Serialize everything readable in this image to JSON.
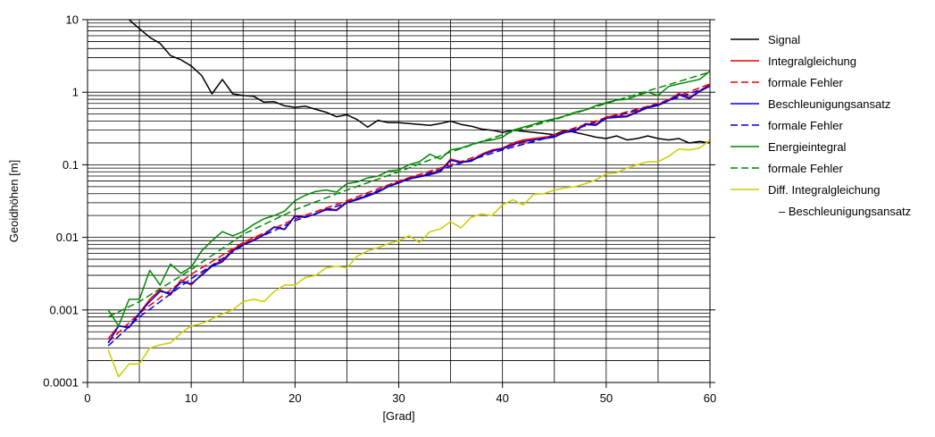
{
  "chart_data": {
    "type": "line",
    "xlabel": "[Grad]",
    "ylabel": "Geoidhöhen [m]",
    "xlim": [
      0,
      60
    ],
    "ylim": [
      0.0001,
      10
    ],
    "yscale": "log",
    "grid": true,
    "legend_placement": "right",
    "x_ticks": [
      "0",
      "10",
      "20",
      "30",
      "40",
      "50",
      "60"
    ],
    "y_ticks": [
      "0.0001",
      "0.001",
      "0.01",
      "0.1",
      "1",
      "10"
    ],
    "series": [
      {
        "name": "Signal",
        "color": "#000000",
        "dash": "solid",
        "x": [
          4,
          5,
          6,
          7,
          8,
          9,
          10,
          11,
          12,
          13,
          14,
          15,
          16,
          17,
          18,
          19,
          20,
          21,
          22,
          23,
          24,
          25,
          26,
          27,
          28,
          29,
          30,
          31,
          32,
          33,
          34,
          35,
          36,
          37,
          38,
          39,
          40,
          41,
          42,
          43,
          44,
          45,
          46,
          47,
          48,
          49,
          50,
          51,
          52,
          53,
          54,
          55,
          56,
          57,
          58,
          59,
          60
        ],
        "y": [
          10,
          7.5,
          5.7,
          4.7,
          3.2,
          2.8,
          2.3,
          1.7,
          0.95,
          1.5,
          0.95,
          0.9,
          0.88,
          0.73,
          0.74,
          0.65,
          0.62,
          0.64,
          0.58,
          0.53,
          0.46,
          0.49,
          0.42,
          0.33,
          0.41,
          0.38,
          0.38,
          0.37,
          0.36,
          0.35,
          0.37,
          0.4,
          0.36,
          0.34,
          0.31,
          0.3,
          0.28,
          0.3,
          0.29,
          0.28,
          0.27,
          0.26,
          0.3,
          0.28,
          0.26,
          0.24,
          0.23,
          0.25,
          0.22,
          0.23,
          0.25,
          0.23,
          0.22,
          0.23,
          0.2,
          0.21,
          0.2
        ]
      },
      {
        "name": "Integralgleichung",
        "color": "#ee0000",
        "dash": "solid",
        "x": [
          2,
          3,
          4,
          5,
          6,
          7,
          8,
          9,
          10,
          11,
          12,
          13,
          14,
          15,
          16,
          17,
          18,
          19,
          20,
          21,
          22,
          23,
          24,
          25,
          26,
          27,
          28,
          29,
          30,
          31,
          32,
          33,
          34,
          35,
          36,
          37,
          38,
          39,
          40,
          41,
          42,
          43,
          44,
          45,
          46,
          47,
          48,
          49,
          50,
          51,
          52,
          53,
          54,
          55,
          56,
          57,
          58,
          59,
          60
        ],
        "y": [
          0.0004,
          0.0006,
          0.00058,
          0.0009,
          0.0014,
          0.0019,
          0.0016,
          0.0026,
          0.0022,
          0.0031,
          0.0041,
          0.0048,
          0.0068,
          0.0082,
          0.0093,
          0.011,
          0.014,
          0.013,
          0.02,
          0.019,
          0.021,
          0.025,
          0.024,
          0.031,
          0.034,
          0.038,
          0.043,
          0.051,
          0.058,
          0.066,
          0.07,
          0.075,
          0.082,
          0.12,
          0.11,
          0.115,
          0.14,
          0.16,
          0.17,
          0.2,
          0.22,
          0.23,
          0.24,
          0.25,
          0.29,
          0.3,
          0.37,
          0.36,
          0.46,
          0.47,
          0.47,
          0.55,
          0.63,
          0.68,
          0.78,
          0.96,
          0.84,
          1.05,
          1.27
        ]
      },
      {
        "name": "formale Fehler",
        "color": "#ee0000",
        "dash": "dashed",
        "x": [
          2,
          5,
          10,
          15,
          20,
          25,
          30,
          35,
          40,
          45,
          50,
          55,
          60
        ],
        "y": [
          0.00036,
          0.0009,
          0.0031,
          0.0085,
          0.018,
          0.032,
          0.06,
          0.1,
          0.17,
          0.26,
          0.45,
          0.7,
          1.3
        ]
      },
      {
        "name": "Beschleunigungsansatz",
        "color": "#0000dd",
        "dash": "solid",
        "x": [
          2,
          3,
          4,
          5,
          6,
          7,
          8,
          9,
          10,
          11,
          12,
          13,
          14,
          15,
          16,
          17,
          18,
          19,
          20,
          21,
          22,
          23,
          24,
          25,
          26,
          27,
          28,
          29,
          30,
          31,
          32,
          33,
          34,
          35,
          36,
          37,
          38,
          39,
          40,
          41,
          42,
          43,
          44,
          45,
          46,
          47,
          48,
          49,
          50,
          51,
          52,
          53,
          54,
          55,
          56,
          57,
          58,
          59,
          60
        ],
        "y": [
          0.00035,
          0.0006,
          0.00057,
          0.0009,
          0.0013,
          0.0018,
          0.0017,
          0.0024,
          0.0023,
          0.003,
          0.004,
          0.0046,
          0.0065,
          0.0079,
          0.009,
          0.0108,
          0.0138,
          0.0128,
          0.0195,
          0.0188,
          0.021,
          0.024,
          0.0235,
          0.03,
          0.033,
          0.037,
          0.042,
          0.05,
          0.056,
          0.064,
          0.068,
          0.073,
          0.08,
          0.115,
          0.108,
          0.112,
          0.135,
          0.155,
          0.165,
          0.19,
          0.21,
          0.22,
          0.23,
          0.24,
          0.28,
          0.29,
          0.36,
          0.35,
          0.44,
          0.45,
          0.46,
          0.53,
          0.61,
          0.66,
          0.76,
          0.92,
          0.82,
          1.02,
          1.22
        ]
      },
      {
        "name": "formale Fehler",
        "color": "#0000dd",
        "dash": "dashed",
        "x": [
          2,
          5,
          10,
          15,
          20,
          25,
          30,
          35,
          40,
          45,
          50,
          55,
          60
        ],
        "y": [
          0.00032,
          0.0008,
          0.0027,
          0.0078,
          0.017,
          0.03,
          0.057,
          0.095,
          0.16,
          0.25,
          0.43,
          0.68,
          1.2
        ]
      },
      {
        "name": "Energieintegral",
        "color": "#008800",
        "dash": "solid",
        "x": [
          2,
          3,
          4,
          5,
          6,
          7,
          8,
          9,
          10,
          11,
          12,
          13,
          14,
          15,
          16,
          17,
          18,
          19,
          20,
          21,
          22,
          23,
          24,
          25,
          26,
          27,
          28,
          29,
          30,
          31,
          32,
          33,
          34,
          35,
          36,
          37,
          38,
          39,
          40,
          41,
          42,
          43,
          44,
          45,
          46,
          47,
          48,
          49,
          50,
          51,
          52,
          53,
          54,
          55,
          56,
          57,
          58,
          59,
          60
        ],
        "y": [
          0.001,
          0.0006,
          0.0014,
          0.0014,
          0.0035,
          0.0022,
          0.0043,
          0.0032,
          0.0039,
          0.0065,
          0.009,
          0.012,
          0.0105,
          0.012,
          0.015,
          0.018,
          0.02,
          0.023,
          0.032,
          0.038,
          0.043,
          0.045,
          0.042,
          0.055,
          0.058,
          0.066,
          0.07,
          0.082,
          0.085,
          0.1,
          0.11,
          0.14,
          0.12,
          0.16,
          0.17,
          0.19,
          0.21,
          0.22,
          0.24,
          0.3,
          0.33,
          0.36,
          0.4,
          0.43,
          0.47,
          0.53,
          0.57,
          0.65,
          0.72,
          0.78,
          0.8,
          0.9,
          1.0,
          0.9,
          1.2,
          1.3,
          1.4,
          1.5,
          1.95
        ]
      },
      {
        "name": "formale Fehler",
        "color": "#008800",
        "dash": "dashed",
        "x": [
          2,
          5,
          10,
          15,
          20,
          25,
          30,
          35,
          40,
          45,
          50,
          55,
          60
        ],
        "y": [
          0.0008,
          0.0013,
          0.0036,
          0.011,
          0.024,
          0.045,
          0.08,
          0.15,
          0.26,
          0.42,
          0.7,
          1.15,
          1.9
        ]
      },
      {
        "name": "Diff. Integralgleichung",
        "name_line2": "– Beschleunigungsansatz",
        "color": "#cccc00",
        "dash": "solid",
        "x": [
          2,
          3,
          4,
          5,
          6,
          7,
          8,
          9,
          10,
          11,
          12,
          13,
          14,
          15,
          16,
          17,
          18,
          19,
          20,
          21,
          22,
          23,
          24,
          25,
          26,
          27,
          28,
          29,
          30,
          31,
          32,
          33,
          34,
          35,
          36,
          37,
          38,
          39,
          40,
          41,
          42,
          43,
          44,
          45,
          46,
          47,
          48,
          49,
          50,
          51,
          52,
          53,
          54,
          55,
          56,
          57,
          58,
          59,
          60
        ],
        "y": [
          0.00028,
          0.00012,
          0.00018,
          0.00018,
          0.0003,
          0.00033,
          0.00035,
          0.00048,
          0.0006,
          0.00065,
          0.00075,
          0.00088,
          0.001,
          0.0013,
          0.0014,
          0.0013,
          0.0018,
          0.0022,
          0.0022,
          0.0028,
          0.003,
          0.0038,
          0.004,
          0.0038,
          0.0055,
          0.0065,
          0.0072,
          0.0082,
          0.009,
          0.0105,
          0.0085,
          0.012,
          0.013,
          0.0165,
          0.0135,
          0.019,
          0.021,
          0.02,
          0.028,
          0.033,
          0.028,
          0.039,
          0.04,
          0.045,
          0.048,
          0.05,
          0.055,
          0.062,
          0.075,
          0.078,
          0.09,
          0.1,
          0.11,
          0.11,
          0.13,
          0.165,
          0.16,
          0.17,
          0.22
        ]
      }
    ]
  }
}
